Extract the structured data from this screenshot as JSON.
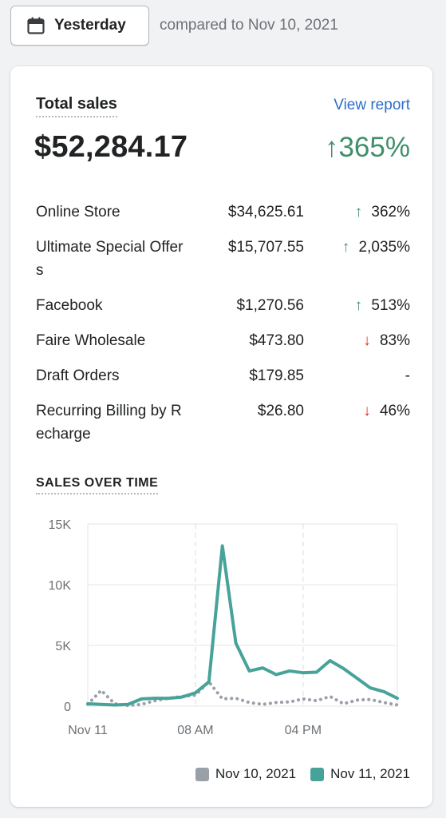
{
  "header": {
    "date_button_label": "Yesterday",
    "compare_text": "compared to Nov 10, 2021"
  },
  "card": {
    "title": "Total sales",
    "view_report": "View report",
    "total": "$52,284.17",
    "total_change": "365%",
    "rows": [
      {
        "name": "Online Store",
        "value": "$34,625.61",
        "change": "362%",
        "dir": "up"
      },
      {
        "name": "Ultimate Special Offers",
        "value": "$15,707.55",
        "change": "2,035%",
        "dir": "up"
      },
      {
        "name": "Facebook",
        "value": "$1,270.56",
        "change": "513%",
        "dir": "up"
      },
      {
        "name": "Faire Wholesale",
        "value": "$473.80",
        "change": "83%",
        "dir": "down"
      },
      {
        "name": "Draft Orders",
        "value": "$179.85",
        "change": "-",
        "dir": "none"
      },
      {
        "name": "Recurring Billing by Recharge",
        "value": "$26.80",
        "change": "46%",
        "dir": "down"
      }
    ]
  },
  "colors": {
    "up": "#3f8f6a",
    "down": "#d72c0d",
    "current_series": "#47a399",
    "previous_series": "#9aa0a8"
  },
  "chart_data": {
    "type": "line",
    "title": "SALES OVER TIME",
    "y_ticks": [
      "0",
      "5K",
      "10K",
      "15K"
    ],
    "ylim": [
      0,
      15000
    ],
    "x_ticks": [
      "Nov 11",
      "08 AM",
      "04 PM"
    ],
    "x_tick_hours": [
      0,
      8,
      16
    ],
    "x_range_hours": [
      0,
      23
    ],
    "grid": true,
    "legend_position": "bottom-right",
    "series": [
      {
        "name": "Nov 10, 2021",
        "style": "dotted",
        "color": "#9aa0a8",
        "x": [
          0,
          1,
          2,
          3,
          4,
          5,
          6,
          7,
          8,
          9,
          10,
          11,
          12,
          13,
          14,
          15,
          16,
          17,
          18,
          19,
          20,
          21,
          22,
          23
        ],
        "values": [
          150,
          1300,
          200,
          50,
          150,
          450,
          650,
          800,
          900,
          2000,
          600,
          650,
          300,
          150,
          300,
          350,
          600,
          450,
          800,
          200,
          500,
          550,
          300,
          100
        ]
      },
      {
        "name": "Nov 11, 2021",
        "style": "solid",
        "color": "#47a399",
        "x": [
          0,
          1,
          2,
          3,
          4,
          5,
          6,
          7,
          8,
          9,
          10,
          11,
          12,
          13,
          14,
          15,
          16,
          17,
          18,
          19,
          20,
          21,
          22,
          23
        ],
        "values": [
          200,
          150,
          100,
          150,
          600,
          650,
          650,
          750,
          1100,
          2000,
          13200,
          5200,
          2900,
          3150,
          2600,
          2900,
          2750,
          2800,
          3750,
          3100,
          2300,
          1500,
          1200,
          650
        ]
      }
    ]
  }
}
